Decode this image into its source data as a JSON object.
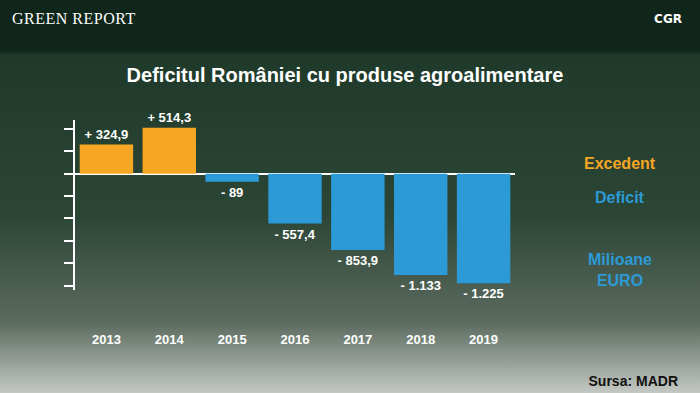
{
  "chart_data": {
    "type": "bar",
    "title": "Deficitul României cu produse agroalimentare",
    "categories": [
      "2013",
      "2014",
      "2015",
      "2016",
      "2017",
      "2018",
      "2019"
    ],
    "values": [
      324.9,
      514.3,
      -89,
      -557.4,
      -853.9,
      -1133,
      -1225
    ],
    "value_labels": [
      "+ 324,9",
      "+ 514,3",
      "- 89",
      "- 557,4",
      "- 853,9",
      "- 1.133",
      "- 1.225"
    ],
    "colors": [
      "#f5a623",
      "#f5a623",
      "#2b9ad6",
      "#2b9ad6",
      "#2b9ad6",
      "#2b9ad6",
      "#2b9ad6"
    ],
    "ylim": [
      -1300,
      600
    ],
    "yticks": [
      -1250,
      -1000,
      -750,
      -500,
      -250,
      0,
      250,
      500
    ],
    "grid": false,
    "data_labels": true,
    "tick_labels": "x",
    "annotations": [
      {
        "text": "Excedent",
        "color": "#f5a623"
      },
      {
        "text": "Deficit",
        "color": "#2b9ad6"
      },
      {
        "text": "Milioane EURO",
        "color": "#2b9ad6"
      }
    ],
    "logos": [
      "GREEN REPORT",
      "CGR"
    ],
    "source": "Sursa: MADR"
  }
}
